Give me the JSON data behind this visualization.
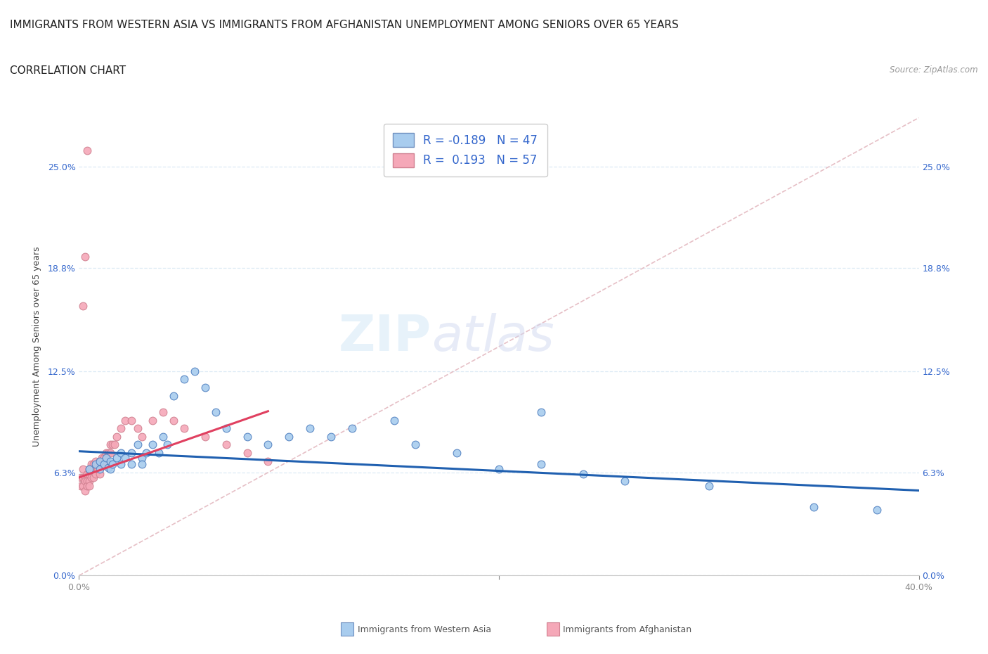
{
  "title_line1": "IMMIGRANTS FROM WESTERN ASIA VS IMMIGRANTS FROM AFGHANISTAN UNEMPLOYMENT AMONG SENIORS OVER 65 YEARS",
  "title_line2": "CORRELATION CHART",
  "source_text": "Source: ZipAtlas.com",
  "ylabel": "Unemployment Among Seniors over 65 years",
  "xlim": [
    0.0,
    0.4
  ],
  "ylim": [
    0.0,
    0.28
  ],
  "ytick_values": [
    0.0,
    0.063,
    0.125,
    0.188,
    0.25
  ],
  "ytick_labels_left": [
    "0.0%",
    "6.3%",
    "12.5%",
    "18.8%",
    "25.0%"
  ],
  "ytick_labels_right": [
    "0.0%",
    "6.3%",
    "12.5%",
    "18.8%",
    "25.0%"
  ],
  "xtick_values": [
    0.0,
    0.2,
    0.4
  ],
  "xtick_labels": [
    "0.0%",
    "",
    "40.0%"
  ],
  "watermark_zip": "ZIP",
  "watermark_atlas": "atlas",
  "color_western_asia": "#a8ccee",
  "color_afghanistan": "#f5a8b8",
  "color_line_western_asia": "#2060b0",
  "color_line_afghanistan": "#e04060",
  "color_diagonal": "#e0b0b8",
  "background_color": "#ffffff",
  "grid_color": "#ddeaf5",
  "title_fontsize": 11,
  "axis_label_fontsize": 9,
  "tick_fontsize": 9,
  "legend_fontsize": 12,
  "western_asia_x": [
    0.005,
    0.008,
    0.01,
    0.01,
    0.012,
    0.013,
    0.014,
    0.015,
    0.015,
    0.016,
    0.018,
    0.02,
    0.02,
    0.022,
    0.025,
    0.025,
    0.028,
    0.03,
    0.03,
    0.032,
    0.035,
    0.038,
    0.04,
    0.042,
    0.045,
    0.05,
    0.055,
    0.06,
    0.065,
    0.07,
    0.08,
    0.09,
    0.1,
    0.11,
    0.12,
    0.13,
    0.15,
    0.16,
    0.18,
    0.2,
    0.22,
    0.24,
    0.26,
    0.3,
    0.35,
    0.38,
    0.22
  ],
  "western_asia_y": [
    0.065,
    0.068,
    0.07,
    0.065,
    0.068,
    0.072,
    0.066,
    0.07,
    0.065,
    0.068,
    0.072,
    0.075,
    0.068,
    0.072,
    0.075,
    0.068,
    0.08,
    0.072,
    0.068,
    0.075,
    0.08,
    0.075,
    0.085,
    0.08,
    0.11,
    0.12,
    0.125,
    0.115,
    0.1,
    0.09,
    0.085,
    0.08,
    0.085,
    0.09,
    0.085,
    0.09,
    0.095,
    0.08,
    0.075,
    0.065,
    0.068,
    0.062,
    0.058,
    0.055,
    0.042,
    0.04,
    0.1
  ],
  "afghanistan_x": [
    0.001,
    0.001,
    0.002,
    0.002,
    0.002,
    0.003,
    0.003,
    0.003,
    0.004,
    0.004,
    0.004,
    0.005,
    0.005,
    0.005,
    0.005,
    0.006,
    0.006,
    0.006,
    0.007,
    0.007,
    0.007,
    0.008,
    0.008,
    0.008,
    0.009,
    0.009,
    0.01,
    0.01,
    0.01,
    0.011,
    0.011,
    0.012,
    0.012,
    0.013,
    0.013,
    0.014,
    0.015,
    0.015,
    0.016,
    0.017,
    0.018,
    0.02,
    0.022,
    0.025,
    0.028,
    0.03,
    0.035,
    0.04,
    0.045,
    0.05,
    0.06,
    0.07,
    0.08,
    0.09,
    0.002,
    0.003,
    0.004
  ],
  "afghanistan_y": [
    0.06,
    0.055,
    0.065,
    0.06,
    0.055,
    0.06,
    0.058,
    0.052,
    0.062,
    0.058,
    0.055,
    0.065,
    0.062,
    0.058,
    0.055,
    0.068,
    0.065,
    0.06,
    0.068,
    0.065,
    0.06,
    0.07,
    0.065,
    0.062,
    0.068,
    0.065,
    0.07,
    0.068,
    0.062,
    0.072,
    0.068,
    0.072,
    0.068,
    0.075,
    0.07,
    0.075,
    0.08,
    0.075,
    0.08,
    0.08,
    0.085,
    0.09,
    0.095,
    0.095,
    0.09,
    0.085,
    0.095,
    0.1,
    0.095,
    0.09,
    0.085,
    0.08,
    0.075,
    0.07,
    0.165,
    0.195,
    0.26
  ]
}
